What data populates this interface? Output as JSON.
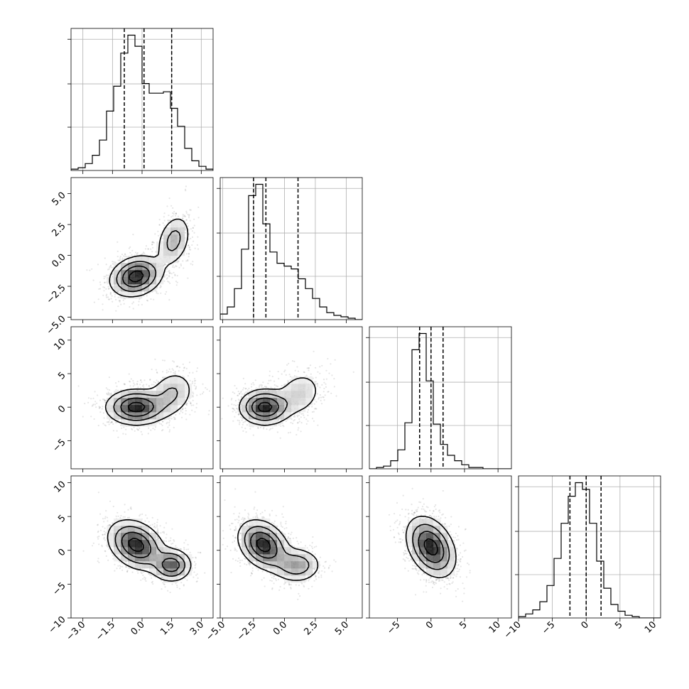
{
  "chart_data": {
    "type": "corner",
    "parameters": [
      {
        "index": 0,
        "range": [
          -3.6,
          3.6
        ],
        "ticks": [
          -3.0,
          -1.5,
          0.0,
          1.5,
          3.0
        ],
        "tick_labels": [
          "−3.0",
          "−1.5",
          "0.0",
          "1.5",
          "3.0"
        ],
        "quantiles": [
          -0.9,
          0.1,
          1.5
        ]
      },
      {
        "index": 1,
        "range": [
          -5.2,
          6.3
        ],
        "ticks": [
          -5.0,
          -2.5,
          0.0,
          2.5,
          5.0
        ],
        "tick_labels": [
          "−5.0",
          "−2.5",
          "0.0",
          "2.5",
          "5.0"
        ],
        "quantiles": [
          -2.5,
          -1.5,
          1.1
        ]
      },
      {
        "index": 2,
        "range": [
          -9.2,
          12.0
        ],
        "ticks": [
          -5,
          0,
          5,
          10
        ],
        "tick_labels": [
          "−5",
          "0",
          "5",
          "10"
        ],
        "quantiles": [
          -1.7,
          0.0,
          1.8
        ]
      },
      {
        "index": 3,
        "range": [
          -10.0,
          11.0
        ],
        "ticks": [
          -10,
          -5,
          0,
          5,
          10
        ],
        "tick_labels": [
          "−10",
          "−5",
          "0",
          "5",
          "10"
        ],
        "quantiles": [
          -2.4,
          0.0,
          2.2
        ]
      }
    ],
    "histograms": [
      {
        "param": 0,
        "bin_start": -3.6,
        "bin_width": 0.36,
        "counts": [
          1,
          2,
          5,
          11,
          22,
          43,
          61,
          85,
          98,
          90,
          63,
          56,
          56,
          57,
          45,
          32,
          16,
          7,
          3,
          1
        ]
      },
      {
        "param": 1,
        "bin_start": -5.2,
        "bin_width": 0.575,
        "counts": [
          4,
          9,
          22,
          50,
          88,
          96,
          68,
          48,
          40,
          38,
          36,
          29,
          22,
          15,
          9,
          5,
          3,
          2,
          1,
          0
        ]
      },
      {
        "param": 2,
        "bin_start": -9.2,
        "bin_width": 1.06,
        "counts": [
          0,
          1,
          2,
          6,
          14,
          34,
          88,
          100,
          65,
          33,
          18,
          10,
          6,
          3,
          1,
          1,
          0,
          0,
          0,
          0
        ]
      },
      {
        "param": 3,
        "bin_start": -10.0,
        "bin_width": 1.05,
        "counts": [
          1,
          3,
          6,
          12,
          24,
          44,
          70,
          90,
          100,
          95,
          70,
          42,
          22,
          10,
          5,
          2,
          1,
          0,
          0,
          0
        ]
      }
    ],
    "joint_distributions": [
      {
        "x_param": 0,
        "y_param": 1,
        "components": [
          {
            "mean": [
              -0.3,
              -1.7
            ],
            "sd": [
              0.65,
              0.8
            ],
            "rho": 0.2,
            "weight": 0.72
          },
          {
            "mean": [
              1.6,
              1.2
            ],
            "sd": [
              0.45,
              1.1
            ],
            "rho": 0.3,
            "weight": 0.28
          }
        ]
      },
      {
        "x_param": 0,
        "y_param": 2,
        "components": [
          {
            "mean": [
              -0.3,
              0.0
            ],
            "sd": [
              0.75,
              1.3
            ],
            "rho": 0.0,
            "weight": 0.72
          },
          {
            "mean": [
              1.5,
              2.0
            ],
            "sd": [
              0.6,
              1.8
            ],
            "rho": 0.2,
            "weight": 0.28
          }
        ]
      },
      {
        "x_param": 1,
        "y_param": 2,
        "components": [
          {
            "mean": [
              -1.6,
              0.0
            ],
            "sd": [
              1.0,
              1.3
            ],
            "rho": 0.0,
            "weight": 0.72
          },
          {
            "mean": [
              1.2,
              2.0
            ],
            "sd": [
              1.0,
              1.8
            ],
            "rho": 0.2,
            "weight": 0.28
          }
        ]
      },
      {
        "x_param": 0,
        "y_param": 3,
        "components": [
          {
            "mean": [
              -0.3,
              0.8
            ],
            "sd": [
              0.7,
              1.8
            ],
            "rho": -0.3,
            "weight": 0.72
          },
          {
            "mean": [
              1.5,
              -2.2
            ],
            "sd": [
              0.5,
              1.2
            ],
            "rho": 0.0,
            "weight": 0.28
          }
        ]
      },
      {
        "x_param": 1,
        "y_param": 3,
        "components": [
          {
            "mean": [
              -1.7,
              0.8
            ],
            "sd": [
              1.0,
              1.8
            ],
            "rho": -0.3,
            "weight": 0.72
          },
          {
            "mean": [
              1.0,
              -2.2
            ],
            "sd": [
              1.0,
              1.3
            ],
            "rho": 0.0,
            "weight": 0.28
          }
        ]
      },
      {
        "x_param": 2,
        "y_param": 3,
        "components": [
          {
            "mean": [
              0.0,
              0.5
            ],
            "sd": [
              1.8,
              2.2
            ],
            "rho": -0.35,
            "weight": 1.0
          }
        ]
      }
    ],
    "grid": true,
    "legend": false
  }
}
